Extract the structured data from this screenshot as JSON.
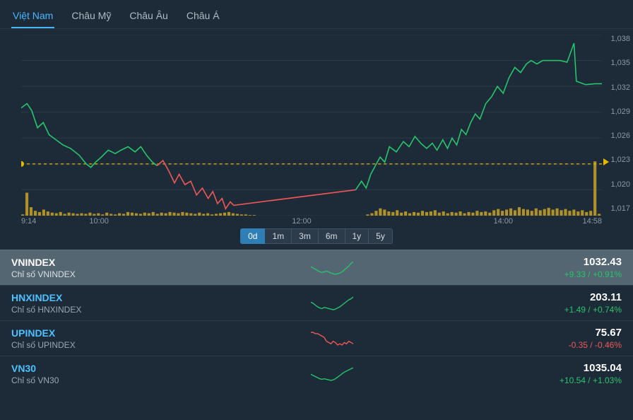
{
  "tabs": [
    {
      "label": "Việt Nam",
      "active": true
    },
    {
      "label": "Châu Mỹ",
      "active": false
    },
    {
      "label": "Châu Âu",
      "active": false
    },
    {
      "label": "Châu Á",
      "active": false
    }
  ],
  "time_buttons": [
    {
      "label": "0d",
      "active": true
    },
    {
      "label": "1m",
      "active": false
    },
    {
      "label": "3m",
      "active": false
    },
    {
      "label": "6m",
      "active": false
    },
    {
      "label": "1y",
      "active": false
    },
    {
      "label": "5y",
      "active": false
    }
  ],
  "chart": {
    "type": "line+volume",
    "ylim": [
      1017,
      1038
    ],
    "ytick_step": 3,
    "yticks": [
      "1,038",
      "1,035",
      "1,032",
      "1,029",
      "1,026",
      "1,023",
      "1,020",
      "1,017"
    ],
    "xticks": [
      {
        "label": "9:14",
        "t": 0
      },
      {
        "label": "10:00",
        "t": 0.134
      },
      {
        "label": "12:00",
        "t": 0.483
      },
      {
        "label": "14:00",
        "t": 0.83
      },
      {
        "label": "14:58",
        "t": 1.0
      }
    ],
    "reference": 1023,
    "background_color": "#1d2b38",
    "grid_color": "#2a3a48",
    "ref_color": "#e6b800",
    "up_color": "#27c46b",
    "down_color": "#ef5757",
    "volume_color": "#c9a227",
    "segments": [
      {
        "from": 0.0,
        "to": 0.234,
        "color": "up",
        "points": [
          [
            0.0,
            1029.5
          ],
          [
            0.01,
            1030.0
          ],
          [
            0.018,
            1029.2
          ],
          [
            0.028,
            1027.2
          ],
          [
            0.038,
            1027.8
          ],
          [
            0.048,
            1026.4
          ],
          [
            0.06,
            1025.8
          ],
          [
            0.072,
            1025.2
          ],
          [
            0.085,
            1024.8
          ],
          [
            0.1,
            1024.0
          ],
          [
            0.112,
            1023.0
          ],
          [
            0.12,
            1022.6
          ],
          [
            0.128,
            1023.2
          ],
          [
            0.138,
            1023.8
          ],
          [
            0.15,
            1024.6
          ],
          [
            0.162,
            1024.2
          ],
          [
            0.172,
            1024.6
          ],
          [
            0.184,
            1025.0
          ],
          [
            0.196,
            1024.4
          ],
          [
            0.206,
            1025.0
          ],
          [
            0.216,
            1024.0
          ],
          [
            0.226,
            1023.2
          ],
          [
            0.234,
            1022.8
          ]
        ]
      },
      {
        "from": 0.234,
        "to": 0.576,
        "color": "down",
        "points": [
          [
            0.234,
            1022.8
          ],
          [
            0.244,
            1023.4
          ],
          [
            0.254,
            1022.2
          ],
          [
            0.264,
            1020.8
          ],
          [
            0.272,
            1021.8
          ],
          [
            0.282,
            1020.6
          ],
          [
            0.292,
            1021.0
          ],
          [
            0.302,
            1019.4
          ],
          [
            0.312,
            1020.2
          ],
          [
            0.322,
            1019.0
          ],
          [
            0.33,
            1019.8
          ],
          [
            0.338,
            1018.4
          ],
          [
            0.346,
            1019.0
          ],
          [
            0.352,
            1017.8
          ],
          [
            0.36,
            1018.6
          ],
          [
            0.366,
            1018.2
          ],
          [
            0.576,
            1020.0
          ]
        ]
      },
      {
        "from": 0.576,
        "to": 1.0,
        "color": "up",
        "points": [
          [
            0.576,
            1020.0
          ],
          [
            0.586,
            1021.0
          ],
          [
            0.594,
            1020.2
          ],
          [
            0.602,
            1021.8
          ],
          [
            0.61,
            1022.8
          ],
          [
            0.618,
            1023.8
          ],
          [
            0.626,
            1023.2
          ],
          [
            0.634,
            1025.0
          ],
          [
            0.646,
            1024.4
          ],
          [
            0.658,
            1025.6
          ],
          [
            0.668,
            1025.0
          ],
          [
            0.678,
            1026.2
          ],
          [
            0.688,
            1025.4
          ],
          [
            0.698,
            1024.8
          ],
          [
            0.708,
            1025.4
          ],
          [
            0.716,
            1024.6
          ],
          [
            0.726,
            1025.8
          ],
          [
            0.734,
            1024.8
          ],
          [
            0.742,
            1026.0
          ],
          [
            0.75,
            1025.2
          ],
          [
            0.758,
            1027.0
          ],
          [
            0.766,
            1026.4
          ],
          [
            0.774,
            1027.8
          ],
          [
            0.782,
            1028.8
          ],
          [
            0.79,
            1028.2
          ],
          [
            0.8,
            1030.0
          ],
          [
            0.81,
            1030.8
          ],
          [
            0.82,
            1032.0
          ],
          [
            0.83,
            1031.2
          ],
          [
            0.84,
            1033.0
          ],
          [
            0.85,
            1034.2
          ],
          [
            0.86,
            1033.6
          ],
          [
            0.87,
            1034.6
          ],
          [
            0.878,
            1035.0
          ],
          [
            0.888,
            1034.6
          ],
          [
            0.898,
            1035.0
          ],
          [
            0.908,
            1035.0
          ],
          [
            0.918,
            1035.0
          ],
          [
            0.928,
            1035.0
          ],
          [
            0.94,
            1034.8
          ],
          [
            0.952,
            1037.0
          ],
          [
            0.956,
            1032.6
          ],
          [
            0.972,
            1032.2
          ],
          [
            0.988,
            1032.3
          ],
          [
            1.0,
            1032.3
          ]
        ]
      }
    ],
    "volumes": [
      2,
      38,
      14,
      8,
      6,
      10,
      7,
      5,
      4,
      6,
      3,
      5,
      4,
      3,
      4,
      3,
      5,
      3,
      4,
      2,
      5,
      3,
      2,
      4,
      3,
      6,
      5,
      4,
      3,
      5,
      4,
      6,
      3,
      5,
      4,
      6,
      5,
      4,
      6,
      5,
      4,
      3,
      5,
      3,
      4,
      2,
      3,
      4,
      5,
      6,
      4,
      3,
      2,
      2,
      1,
      1,
      0,
      0,
      0,
      0,
      0,
      0,
      0,
      0,
      0,
      0,
      0,
      0,
      0,
      0,
      0,
      0,
      0,
      0,
      0,
      0,
      0,
      0,
      0,
      0,
      0,
      0,
      2,
      4,
      8,
      12,
      10,
      7,
      6,
      9,
      5,
      7,
      4,
      6,
      5,
      8,
      6,
      7,
      9,
      5,
      7,
      4,
      6,
      5,
      7,
      4,
      6,
      5,
      8,
      6,
      7,
      5,
      9,
      11,
      8,
      10,
      12,
      9,
      14,
      11,
      10,
      8,
      12,
      9,
      11,
      13,
      10,
      12,
      9,
      11,
      8,
      10,
      7,
      9,
      6,
      8,
      90,
      3
    ]
  },
  "indices": [
    {
      "symbol": "VNINDEX",
      "desc": "Chỉ số VNINDEX",
      "value": "1032.43",
      "change": "+9.33 / +0.91%",
      "dir": "up",
      "selected": true,
      "spark": [
        4,
        3.6,
        3.2,
        2.8,
        2.4,
        2.2,
        2.4,
        2.6,
        2.4,
        2.0,
        1.8,
        1.6,
        1.8,
        2.0,
        2.4,
        3.0,
        3.6,
        4.2,
        5.0,
        5.6
      ]
    },
    {
      "symbol": "HNXINDEX",
      "desc": "Chỉ số HNXINDEX",
      "value": "203.11",
      "change": "+1.49 / +0.74%",
      "dir": "up",
      "selected": false,
      "spark": [
        4.2,
        3.8,
        3.2,
        2.6,
        2.2,
        2.0,
        2.4,
        2.2,
        2.0,
        1.8,
        1.6,
        1.8,
        2.2,
        2.6,
        3.2,
        3.8,
        4.4,
        5.0,
        5.4,
        6.0
      ]
    },
    {
      "symbol": "UPINDEX",
      "desc": "Chỉ số UPINDEX",
      "value": "75.67",
      "change": "-0.35 / -0.46%",
      "dir": "down",
      "selected": false,
      "spark": [
        5.0,
        5.0,
        4.8,
        4.8,
        4.6,
        4.4,
        4.2,
        3.6,
        3.4,
        3.2,
        3.6,
        3.4,
        3.0,
        3.2,
        3.0,
        3.4,
        3.2,
        3.6,
        3.4,
        3.2
      ]
    },
    {
      "symbol": "VN30",
      "desc": "Chỉ số VN30",
      "value": "1035.04",
      "change": "+10.54 / +1.03%",
      "dir": "up",
      "selected": false,
      "spark": [
        3.8,
        3.4,
        3.0,
        2.6,
        2.2,
        2.0,
        2.2,
        2.0,
        1.8,
        1.6,
        1.8,
        2.2,
        2.8,
        3.4,
        4.0,
        4.6,
        5.0,
        5.4,
        5.8,
        6.2
      ]
    }
  ]
}
